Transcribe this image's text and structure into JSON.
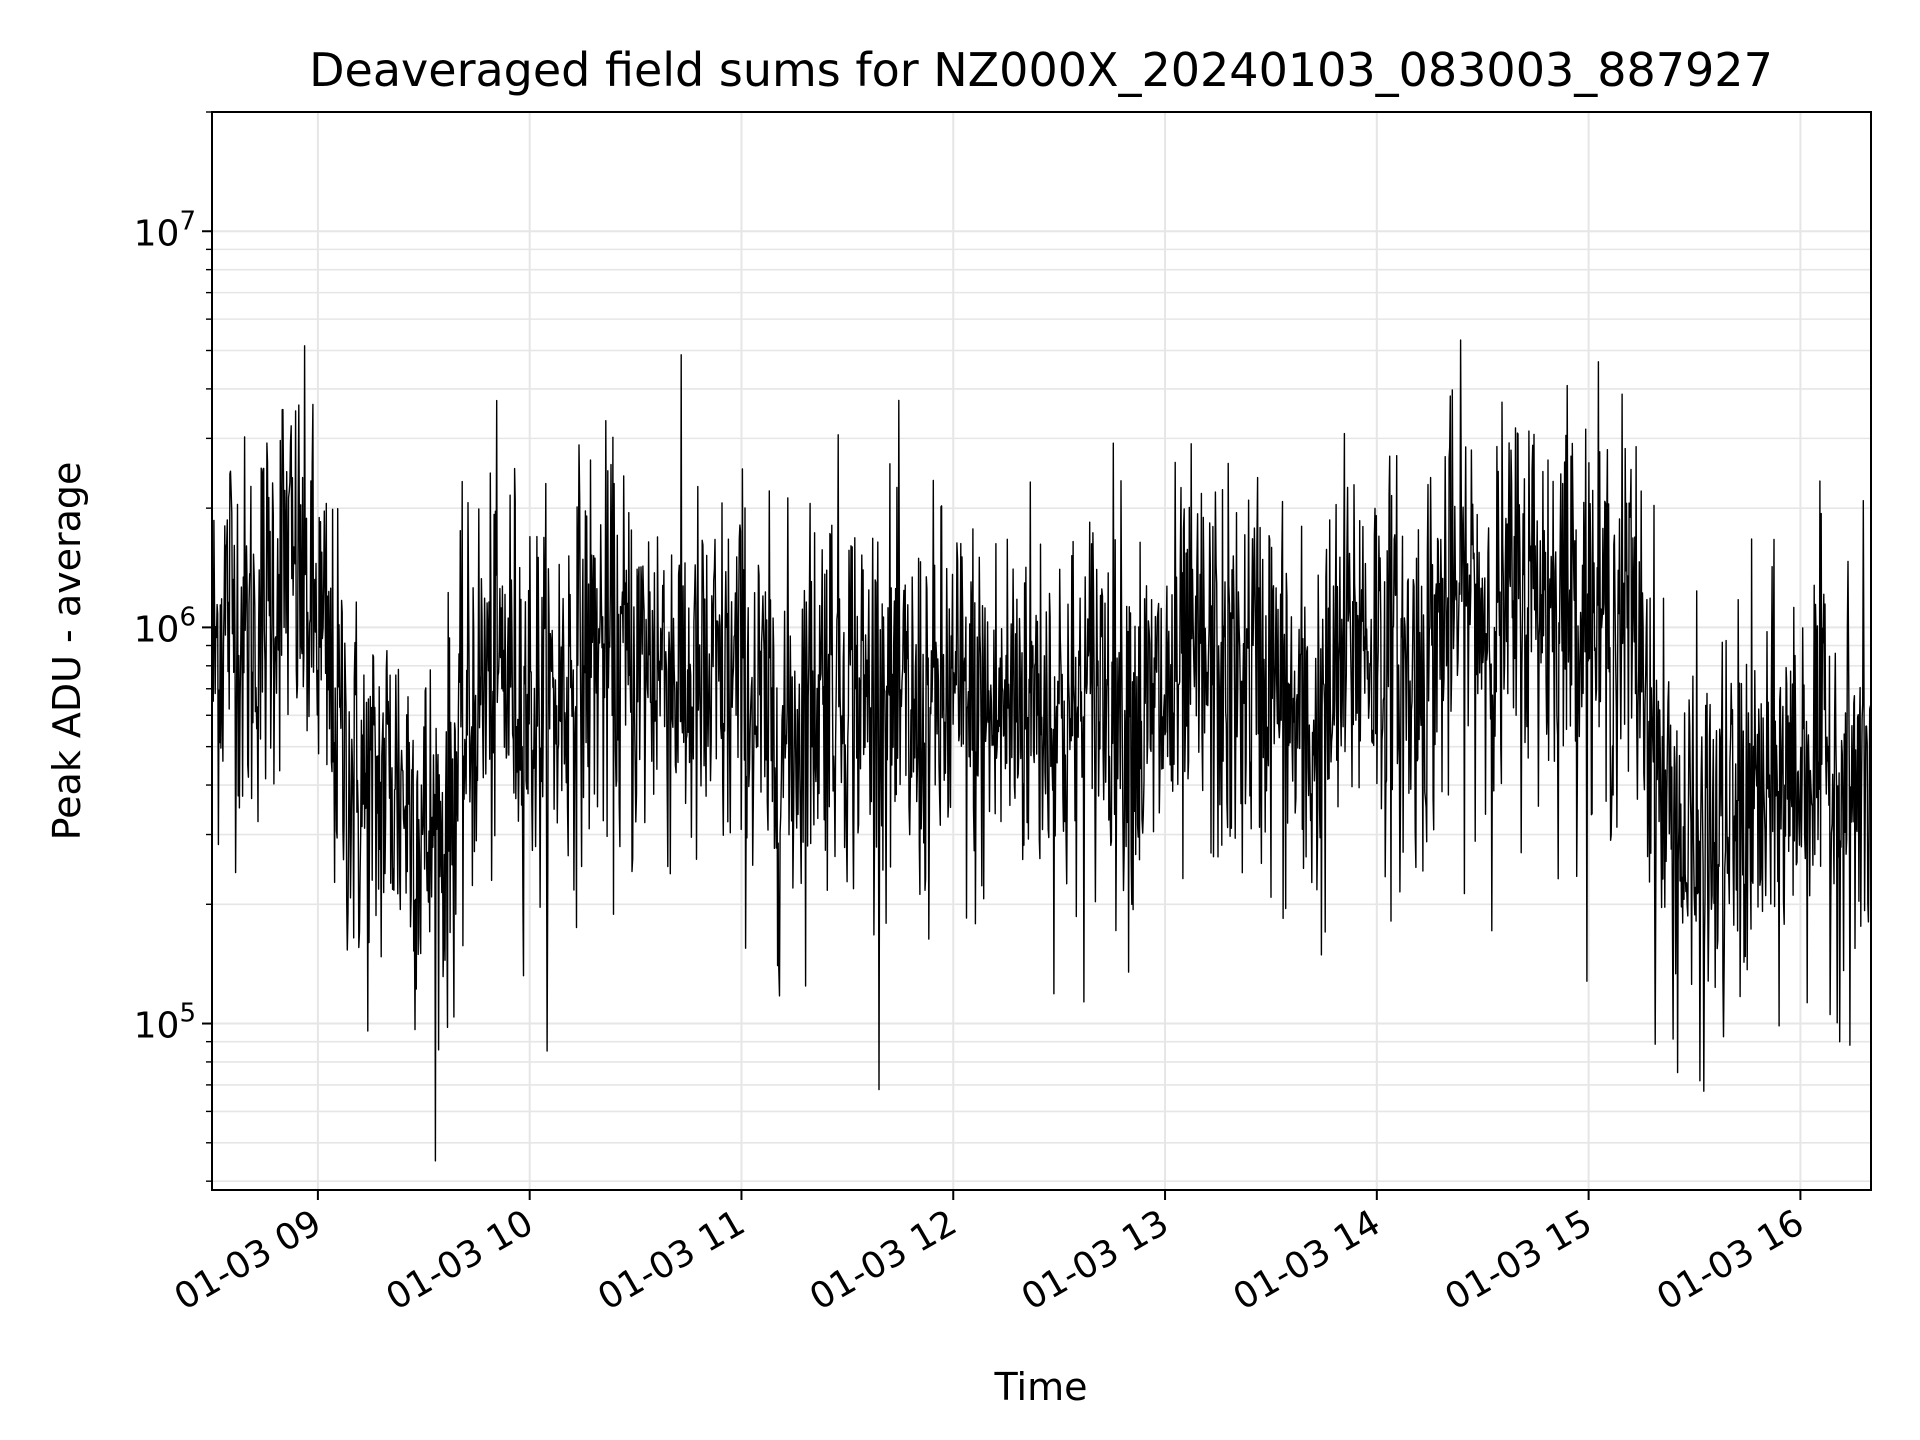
{
  "chart_data": {
    "type": "line",
    "title": "Deaveraged field sums for NZ000X_20240103_083003_887927",
    "xlabel": "Time",
    "ylabel": "Peak ADU - average",
    "x_axis_type": "time",
    "x_range": [
      "2024-01-03 08:30",
      "2024-01-03 16:20"
    ],
    "x_ticks": [
      "01-03 09",
      "01-03 10",
      "01-03 11",
      "01-03 12",
      "01-03 13",
      "01-03 14",
      "01-03 15",
      "01-03 16"
    ],
    "y_scale": "log",
    "ylim": [
      38000,
      20000000
    ],
    "y_ticks": [
      {
        "base": "10",
        "exp": "5",
        "value": 100000
      },
      {
        "base": "10",
        "exp": "6",
        "value": 1000000
      },
      {
        "base": "10",
        "exp": "7",
        "value": 10000000
      }
    ],
    "grid": true,
    "line_color": "#000000",
    "grid_color": "#e6e6e6",
    "series": [
      {
        "x": [
          "2024-01-03 08:30",
          "2024-01-03 08:35",
          "2024-01-03 08:40",
          "2024-01-03 08:45",
          "2024-01-03 08:50",
          "2024-01-03 08:55",
          "2024-01-03 09:00",
          "2024-01-03 09:05",
          "2024-01-03 09:10",
          "2024-01-03 09:15",
          "2024-01-03 09:20",
          "2024-01-03 09:25",
          "2024-01-03 09:30",
          "2024-01-03 09:35",
          "2024-01-03 09:40",
          "2024-01-03 09:45",
          "2024-01-03 09:50",
          "2024-01-03 09:55",
          "2024-01-03 10:00",
          "2024-01-03 10:05",
          "2024-01-03 10:10",
          "2024-01-03 10:15",
          "2024-01-03 10:20",
          "2024-01-03 10:25",
          "2024-01-03 10:30",
          "2024-01-03 10:35",
          "2024-01-03 10:40",
          "2024-01-03 10:45",
          "2024-01-03 10:50",
          "2024-01-03 10:55",
          "2024-01-03 11:00",
          "2024-01-03 11:05",
          "2024-01-03 11:10",
          "2024-01-03 11:15",
          "2024-01-03 11:20",
          "2024-01-03 11:25",
          "2024-01-03 11:30",
          "2024-01-03 11:35",
          "2024-01-03 11:40",
          "2024-01-03 11:45",
          "2024-01-03 11:50",
          "2024-01-03 11:55",
          "2024-01-03 12:00",
          "2024-01-03 12:05",
          "2024-01-03 12:10",
          "2024-01-03 12:15",
          "2024-01-03 12:20",
          "2024-01-03 12:25",
          "2024-01-03 12:30",
          "2024-01-03 12:35",
          "2024-01-03 12:40",
          "2024-01-03 12:45",
          "2024-01-03 12:50",
          "2024-01-03 12:55",
          "2024-01-03 13:00",
          "2024-01-03 13:05",
          "2024-01-03 13:10",
          "2024-01-03 13:15",
          "2024-01-03 13:20",
          "2024-01-03 13:25",
          "2024-01-03 13:30",
          "2024-01-03 13:35",
          "2024-01-03 13:40",
          "2024-01-03 13:45",
          "2024-01-03 13:50",
          "2024-01-03 13:55",
          "2024-01-03 14:00",
          "2024-01-03 14:05",
          "2024-01-03 14:10",
          "2024-01-03 14:15",
          "2024-01-03 14:20",
          "2024-01-03 14:25",
          "2024-01-03 14:30",
          "2024-01-03 14:35",
          "2024-01-03 14:40",
          "2024-01-03 14:45",
          "2024-01-03 14:50",
          "2024-01-03 14:55",
          "2024-01-03 15:00",
          "2024-01-03 15:05",
          "2024-01-03 15:10",
          "2024-01-03 15:15",
          "2024-01-03 15:20",
          "2024-01-03 15:25",
          "2024-01-03 15:30",
          "2024-01-03 15:35",
          "2024-01-03 15:40",
          "2024-01-03 15:45",
          "2024-01-03 15:50",
          "2024-01-03 15:55",
          "2024-01-03 16:00",
          "2024-01-03 16:05",
          "2024-01-03 16:10",
          "2024-01-03 16:15",
          "2024-01-03 16:20"
        ],
        "y": [
          800000,
          1200000,
          900000,
          1100000,
          1500000,
          1300000,
          1000000,
          600000,
          400000,
          350000,
          420000,
          380000,
          300000,
          280000,
          450000,
          700000,
          750000,
          800000,
          650000,
          600000,
          700000,
          850000,
          900000,
          800000,
          750000,
          850000,
          800000,
          700000,
          650000,
          700000,
          750000,
          600000,
          500000,
          550000,
          700000,
          800000,
          750000,
          650000,
          700000,
          600000,
          550000,
          620000,
          650000,
          600000,
          580000,
          620000,
          700000,
          650000,
          600000,
          550000,
          700000,
          750000,
          600000,
          550000,
          650000,
          700000,
          800000,
          750000,
          700000,
          800000,
          750000,
          600000,
          500000,
          550000,
          800000,
          1000000,
          900000,
          800000,
          700000,
          900000,
          1100000,
          1200000,
          1100000,
          1000000,
          1200000,
          1300000,
          1150000,
          1250000,
          1100000,
          1000000,
          1100000,
          900000,
          400000,
          300000,
          250000,
          280000,
          300000,
          350000,
          350000,
          400000,
          450000,
          500000,
          420000,
          380000,
          400000
        ]
      }
    ]
  }
}
